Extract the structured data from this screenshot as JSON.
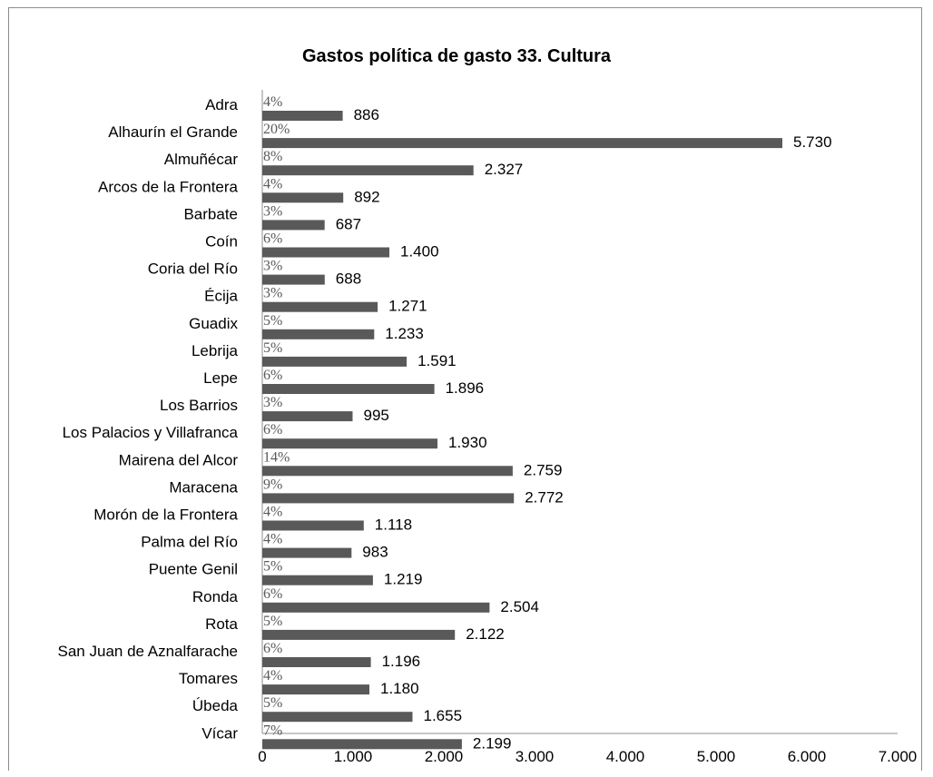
{
  "chart_data": {
    "type": "bar",
    "orientation": "horizontal",
    "title": "Gastos política de gasto 33. Cultura",
    "categories": [
      "Adra",
      "Alhaurín el Grande",
      "Almuñécar",
      "Arcos de la Frontera",
      "Barbate",
      "Coín",
      "Coria del Río",
      "Écija",
      "Guadix",
      "Lebrija",
      "Lepe",
      "Los Barrios",
      "Los Palacios y Villafranca",
      "Mairena del Alcor",
      "Maracena",
      "Morón de la Frontera",
      "Palma del Río",
      "Puente Genil",
      "Ronda",
      "Rota",
      "San Juan de Aznalfarache",
      "Tomares",
      "Úbeda",
      "Vícar"
    ],
    "values": [
      886,
      5730,
      2327,
      892,
      687,
      1400,
      688,
      1271,
      1233,
      1591,
      1896,
      995,
      1930,
      2759,
      2772,
      1118,
      983,
      1219,
      2504,
      2122,
      1196,
      1180,
      1655,
      2199
    ],
    "value_labels": [
      "886",
      "5.730",
      "2.327",
      "892",
      "687",
      "1.400",
      "688",
      "1.271",
      "1.233",
      "1.591",
      "1.896",
      "995",
      "1.930",
      "2.759",
      "2.772",
      "1.118",
      "983",
      "1.219",
      "2.504",
      "2.122",
      "1.196",
      "1.180",
      "1.655",
      "2.199"
    ],
    "percent_labels": [
      "4%",
      "20%",
      "8%",
      "4%",
      "3%",
      "6%",
      "3%",
      "3%",
      "5%",
      "5%",
      "6%",
      "3%",
      "6%",
      "14%",
      "9%",
      "4%",
      "4%",
      "5%",
      "6%",
      "5%",
      "6%",
      "4%",
      "5%",
      "7%"
    ],
    "xlim": [
      0,
      7000
    ],
    "x_ticks": [
      0,
      1000,
      2000,
      3000,
      4000,
      5000,
      6000,
      7000
    ],
    "x_tick_labels": [
      "0",
      "1.000",
      "2.000",
      "3.000",
      "4.000",
      "5.000",
      "6.000",
      "7.000"
    ],
    "xlabel": "",
    "ylabel": "",
    "grid": false,
    "legend": "none",
    "bar_color": "#595959"
  }
}
